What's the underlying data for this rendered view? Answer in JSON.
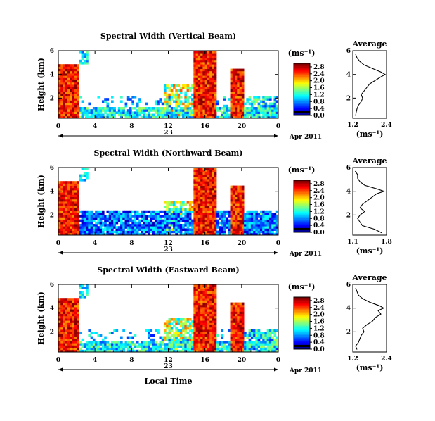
{
  "chart_data": [
    {
      "type": "heatmap",
      "title": "Spectral Width (Vertical Beam)",
      "ylabel": "Height (km)",
      "xlabel": "",
      "x_ticks": [
        "0",
        "4",
        "8",
        "12",
        "16",
        "20",
        "0"
      ],
      "y_ticks": [
        "2",
        "4",
        "6"
      ],
      "xlim": [
        0,
        24
      ],
      "ylim": [
        0.3,
        6.0
      ],
      "date_label": "23",
      "month_label": "Apr 2011",
      "colorbar": {
        "unit": "(ms⁻¹)",
        "ticks": [
          "0.0",
          "0.4",
          "0.8",
          "1.2",
          "1.6",
          "2.0",
          "2.4",
          "2.8"
        ],
        "range": [
          0.0,
          3.0
        ]
      },
      "average_profile": {
        "title": "Average",
        "xlabel": "(ms⁻¹)",
        "x_ticks": [
          "1.2",
          "2.4"
        ],
        "xlim": [
          1.2,
          2.4
        ],
        "y_ticks": [
          "2",
          "4",
          "6"
        ],
        "ylim": [
          0.3,
          6.0
        ],
        "heights": [
          0.5,
          0.8,
          1.1,
          1.4,
          1.7,
          2.0,
          2.3,
          2.6,
          2.9,
          3.2,
          3.5,
          3.8,
          4.0,
          4.2,
          4.5,
          4.8,
          5.1,
          5.4,
          5.7
        ],
        "values": [
          1.3,
          1.32,
          1.35,
          1.4,
          1.5,
          1.55,
          1.5,
          1.6,
          1.7,
          1.8,
          2.0,
          2.2,
          2.35,
          2.2,
          1.9,
          1.6,
          1.45,
          1.35,
          1.3
        ]
      }
    },
    {
      "type": "heatmap",
      "title": "Spectral Width (Northward Beam)",
      "ylabel": "Height (km)",
      "xlabel": "",
      "x_ticks": [
        "0",
        "4",
        "8",
        "12",
        "16",
        "20",
        "0"
      ],
      "y_ticks": [
        "2",
        "4",
        "6"
      ],
      "xlim": [
        0,
        24
      ],
      "ylim": [
        0.3,
        6.0
      ],
      "date_label": "23",
      "month_label": "Apr 2011",
      "colorbar": {
        "unit": "(ms⁻¹)",
        "ticks": [
          "0.0",
          "0.4",
          "0.8",
          "1.2",
          "1.6",
          "2.0",
          "2.4",
          "2.8"
        ],
        "range": [
          0.0,
          3.0
        ]
      },
      "average_profile": {
        "title": "Average",
        "xlabel": "(ms⁻¹)",
        "x_ticks": [
          "1.1",
          "1.8"
        ],
        "xlim": [
          1.1,
          1.8
        ],
        "y_ticks": [
          "2",
          "4",
          "6"
        ],
        "ylim": [
          0.3,
          6.0
        ],
        "heights": [
          0.5,
          0.8,
          1.1,
          1.4,
          1.7,
          2.0,
          2.3,
          2.6,
          2.9,
          3.2,
          3.5,
          3.8,
          4.0,
          4.2,
          4.5,
          4.8,
          5.1,
          5.4,
          5.7
        ],
        "values": [
          1.7,
          1.55,
          1.3,
          1.25,
          1.2,
          1.25,
          1.35,
          1.25,
          1.3,
          1.4,
          1.5,
          1.6,
          1.75,
          1.6,
          1.35,
          1.25,
          1.2,
          1.2,
          1.15
        ]
      }
    },
    {
      "type": "heatmap",
      "title": "Spectral Width (Eastward Beam)",
      "ylabel": "Height (km)",
      "xlabel": "Local Time",
      "x_ticks": [
        "0",
        "4",
        "8",
        "12",
        "16",
        "20",
        "0"
      ],
      "y_ticks": [
        "2",
        "4",
        "6"
      ],
      "xlim": [
        0,
        24
      ],
      "ylim": [
        0.3,
        6.0
      ],
      "date_label": "23",
      "month_label": "Apr 2011",
      "colorbar": {
        "unit": "(ms⁻¹)",
        "ticks": [
          "0.0",
          "0.4",
          "0.8",
          "1.2",
          "1.6",
          "2.0",
          "2.4",
          "2.8"
        ],
        "range": [
          0.0,
          3.0
        ]
      },
      "average_profile": {
        "title": "Average",
        "xlabel": "(ms⁻¹)",
        "x_ticks": [
          "1.2",
          "2.4"
        ],
        "xlim": [
          1.2,
          2.4
        ],
        "y_ticks": [
          "2",
          "4",
          "6"
        ],
        "ylim": [
          0.3,
          6.0
        ],
        "heights": [
          0.5,
          0.8,
          1.1,
          1.4,
          1.7,
          2.0,
          2.3,
          2.6,
          2.9,
          3.2,
          3.5,
          3.8,
          4.0,
          4.2,
          4.5,
          4.8,
          5.1,
          5.4,
          5.7
        ],
        "values": [
          1.35,
          1.3,
          1.4,
          1.45,
          1.5,
          1.6,
          1.55,
          1.7,
          1.9,
          2.0,
          2.2,
          2.1,
          2.3,
          2.15,
          1.8,
          1.55,
          1.4,
          1.35,
          1.3
        ]
      }
    }
  ]
}
